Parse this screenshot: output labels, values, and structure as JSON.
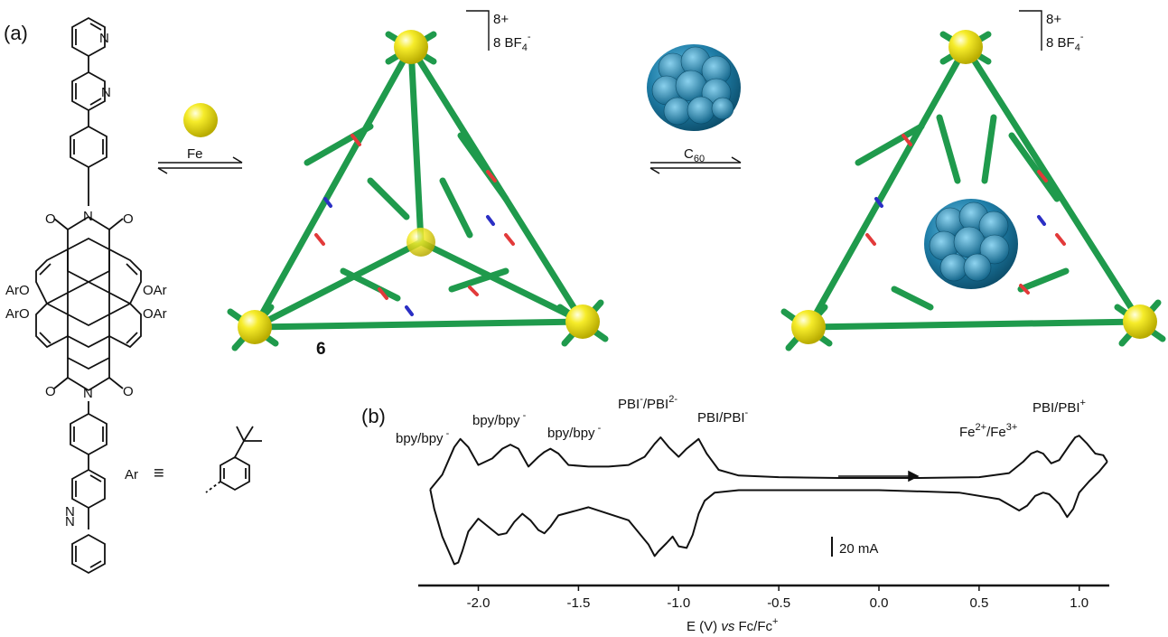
{
  "panel_a": {
    "label": "(a)",
    "molecule": {
      "o_top_left": "O",
      "n_top": "N",
      "o_top_right": "O",
      "aro_left_1": "ArO",
      "aro_right_1": "OAr",
      "aro_left_2": "ArO",
      "aro_right_2": "OAr",
      "o_bottom_left": "O",
      "n_bottom": "N",
      "o_bottom_right": "O",
      "pyridine_n_1": "N",
      "pyridine_n_2": "N",
      "pyridine_n_3": "N",
      "pyridine_n_4": "N"
    },
    "ar_definition": {
      "symbol": "Ar",
      "equiv": "≡"
    },
    "reaction_1": {
      "reagent": "Fe",
      "sphere_color": "#f2e600"
    },
    "reaction_2": {
      "reagent_main": "C",
      "reagent_sub": "60",
      "fullerene_color": "#1f7ea8"
    },
    "cage": {
      "label": "6",
      "color": "#1f9a4c",
      "metal_color": "#f2e600",
      "charge": "8+",
      "counterion_main": "8 BF",
      "counterion_sub": "4",
      "counterion_sup": "-"
    },
    "cage_c60": {
      "charge": "8+",
      "counterion_main": "8 BF",
      "counterion_sub": "4",
      "counterion_sup": "-"
    }
  },
  "panel_b": {
    "label": "(b)",
    "chart_data": {
      "type": "line",
      "title": "",
      "xlabel_parts": [
        "E (V) ",
        "vs",
        " Fc/Fc",
        "+"
      ],
      "ylabel": "",
      "xlim": [
        -2.3,
        1.15
      ],
      "x_ticks": [
        -2.0,
        -1.5,
        -1.0,
        -0.5,
        0.0,
        0.5,
        1.0
      ],
      "x_tick_labels": [
        "-2.0",
        "-1.5",
        "-1.0",
        "-0.5",
        "0.0",
        "0.5",
        "1.0"
      ],
      "scale_bar": "20 mA",
      "sweep_direction": "positive",
      "series": [
        {
          "x": [
            -2.24,
            -2.18,
            -2.12,
            -2.09,
            -2.05,
            -2.0,
            -1.93,
            -1.88,
            -1.84,
            -1.8,
            -1.75,
            -1.7,
            -1.67,
            -1.64,
            -1.6,
            -1.55,
            -1.45,
            -1.35,
            -1.25,
            -1.17,
            -1.12,
            -1.09,
            -1.05,
            -1.0,
            -0.96,
            -0.93,
            -0.9,
            -0.86,
            -0.8,
            -0.7,
            -0.5,
            -0.2,
            0.2,
            0.5,
            0.65,
            0.72,
            0.76,
            0.79,
            0.82,
            0.86,
            0.9,
            0.95,
            0.98,
            1.0,
            1.04,
            1.08,
            1.12,
            1.14
          ],
          "y": [
            -4,
            14,
            48,
            58,
            48,
            26,
            34,
            46,
            51,
            46,
            24,
            36,
            42,
            46,
            40,
            26,
            24,
            24,
            26,
            36,
            52,
            60,
            48,
            36,
            46,
            52,
            58,
            40,
            20,
            13,
            11,
            10,
            10,
            11,
            16,
            30,
            40,
            43,
            40,
            28,
            32,
            50,
            60,
            62,
            52,
            40,
            38,
            30
          ]
        },
        {
          "x": [
            1.14,
            1.1,
            1.05,
            1.0,
            0.97,
            0.94,
            0.9,
            0.85,
            0.82,
            0.78,
            0.74,
            0.7,
            0.6,
            0.4,
            0.0,
            -0.4,
            -0.7,
            -0.82,
            -0.87,
            -0.9,
            -0.93,
            -0.96,
            -1.0,
            -1.03,
            -1.06,
            -1.1,
            -1.12,
            -1.15,
            -1.25,
            -1.45,
            -1.6,
            -1.64,
            -1.67,
            -1.7,
            -1.74,
            -1.78,
            -1.82,
            -1.86,
            -1.9,
            -1.95,
            -2.0,
            -2.05,
            -2.08,
            -2.1,
            -2.12,
            -2.18,
            -2.22,
            -2.24
          ],
          "y": [
            30,
            18,
            6,
            -8,
            -28,
            -38,
            -22,
            -10,
            -8,
            -12,
            -24,
            -30,
            -16,
            -8,
            -5,
            -5,
            -5,
            -8,
            -18,
            -34,
            -60,
            -76,
            -74,
            -62,
            -70,
            -80,
            -86,
            -72,
            -42,
            -26,
            -36,
            -50,
            -58,
            -54,
            -42,
            -34,
            -44,
            -58,
            -60,
            -50,
            -40,
            -56,
            -80,
            -94,
            -96,
            -62,
            -28,
            -4
          ]
        }
      ],
      "peak_labels": [
        {
          "main": "bpy/bpy",
          "sup": " -"
        },
        {
          "main": "bpy/bpy",
          "sup": " -"
        },
        {
          "main": "bpy/bpy",
          "sup": " -"
        },
        {
          "main": "PBI",
          "sup1": "-",
          "mid": "/PBI",
          "sup2": "2-"
        },
        {
          "main": "PBI/PBI",
          "sup": "-"
        },
        {
          "main": "Fe",
          "sup1": "2+",
          "mid": "/Fe",
          "sup2": "3+"
        },
        {
          "main": "PBI/PBI",
          "sup": "+"
        }
      ]
    }
  }
}
